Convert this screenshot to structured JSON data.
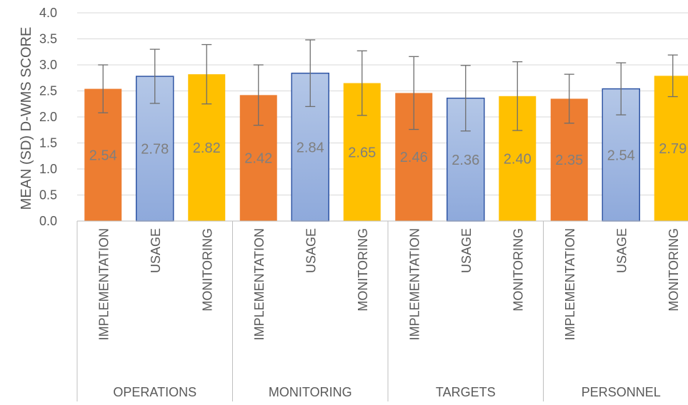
{
  "chart_data": {
    "type": "bar",
    "title": "",
    "xlabel": "",
    "ylabel": "MEAN (SD) D-WMS SCORE",
    "ylim": [
      0,
      4
    ],
    "yticks": [
      "0.0",
      "0.5",
      "1.0",
      "1.5",
      "2.0",
      "2.5",
      "3.0",
      "3.5",
      "4.0"
    ],
    "grid": true,
    "legend": "none",
    "groups": [
      {
        "label": "OPERATIONS",
        "bars": [
          {
            "category": "IMPLEMENTATION",
            "value": 2.54,
            "label": "2.54",
            "error_low": 2.08,
            "error_high": 3.0,
            "color": "#ED7D31"
          },
          {
            "category": "USAGE",
            "value": 2.78,
            "label": "2.78",
            "error_low": 2.26,
            "error_high": 3.3,
            "color": "#8FAADC"
          },
          {
            "category": "MONITORING",
            "value": 2.82,
            "label": "2.82",
            "error_low": 2.25,
            "error_high": 3.39,
            "color": "#FFC000"
          }
        ]
      },
      {
        "label": "MONITORING",
        "bars": [
          {
            "category": "IMPLEMENTATION",
            "value": 2.42,
            "label": "2.42",
            "error_low": 1.84,
            "error_high": 3.0,
            "color": "#ED7D31"
          },
          {
            "category": "USAGE",
            "value": 2.84,
            "label": "2.84",
            "error_low": 2.2,
            "error_high": 3.48,
            "color": "#8FAADC"
          },
          {
            "category": "MONITORING",
            "value": 2.65,
            "label": "2.65",
            "error_low": 2.03,
            "error_high": 3.27,
            "color": "#FFC000"
          }
        ]
      },
      {
        "label": "TARGETS",
        "bars": [
          {
            "category": "IMPLEMENTATION",
            "value": 2.46,
            "label": "2.46",
            "error_low": 1.76,
            "error_high": 3.16,
            "color": "#ED7D31"
          },
          {
            "category": "USAGE",
            "value": 2.36,
            "label": "2.36",
            "error_low": 1.73,
            "error_high": 2.99,
            "color": "#8FAADC"
          },
          {
            "category": "MONITORING",
            "value": 2.4,
            "label": "2.40",
            "error_low": 1.74,
            "error_high": 3.06,
            "color": "#FFC000"
          }
        ]
      },
      {
        "label": "PERSONNEL",
        "bars": [
          {
            "category": "IMPLEMENTATION",
            "value": 2.35,
            "label": "2.35",
            "error_low": 1.88,
            "error_high": 2.82,
            "color": "#ED7D31"
          },
          {
            "category": "USAGE",
            "value": 2.54,
            "label": "2.54",
            "error_low": 2.04,
            "error_high": 3.04,
            "color": "#8FAADC"
          },
          {
            "category": "MONITORING",
            "value": 2.79,
            "label": "2.79",
            "error_low": 2.39,
            "error_high": 3.19,
            "color": "#FFC000"
          }
        ]
      }
    ]
  }
}
